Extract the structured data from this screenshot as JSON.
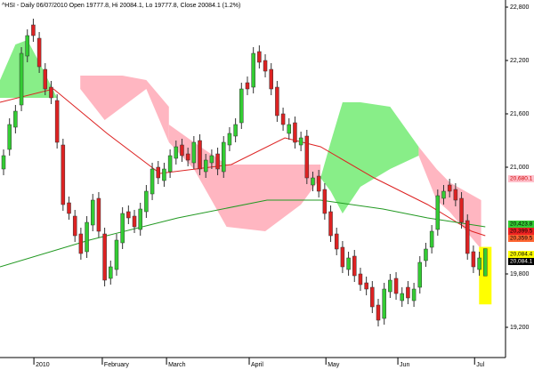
{
  "chart_data": {
    "type": "candlestick",
    "title": "^HSI - Daily 06/07/2010 Open 19777.8, Hi 20084.1, Lo 19777.8, Close 20084.1 (1.2%)",
    "x": [
      0,
      1,
      2,
      3,
      4,
      5,
      6,
      7,
      8,
      9,
      10,
      11,
      12,
      13,
      14,
      15,
      16,
      17,
      18,
      19,
      20,
      21,
      22,
      23,
      24,
      25,
      26,
      27,
      28,
      29,
      30,
      31,
      32,
      33,
      34,
      35,
      36,
      37,
      38,
      39,
      40,
      41,
      42,
      43,
      44,
      45,
      46,
      47,
      48,
      49,
      50,
      51,
      52,
      53,
      54,
      55,
      56,
      57,
      58,
      59,
      60,
      61,
      62,
      63,
      64,
      65,
      66,
      67,
      68,
      69,
      70,
      71,
      72,
      73,
      74,
      75,
      76,
      77,
      78,
      79,
      80,
      81
    ],
    "open": [
      20980,
      21200,
      21450,
      21700,
      22250,
      22600,
      22450,
      22100,
      21900,
      21750,
      21250,
      20600,
      20450,
      20250,
      20050,
      20350,
      20650,
      20250,
      19750,
      19850,
      20150,
      20500,
      20450,
      20300,
      20500,
      20700,
      21000,
      20850,
      20950,
      21100,
      21250,
      21150,
      21050,
      21300,
      20950,
      21050,
      21150,
      20950,
      21250,
      21350,
      21500,
      21950,
      21900,
      22300,
      22200,
      22100,
      21900,
      21600,
      21380,
      21500,
      21250,
      21350,
      20800,
      20900,
      20750,
      20500,
      20250,
      20100,
      19850,
      20000,
      19800,
      19700,
      19650,
      19450,
      19300,
      19600,
      19750,
      19500,
      19650,
      19500,
      19650,
      19950,
      20100,
      20300,
      20650,
      20800,
      20750,
      20650,
      20400,
      20050,
      19850,
      19777.8
    ],
    "high": [
      21200,
      21550,
      21700,
      22350,
      22550,
      22670,
      22520,
      22170,
      21970,
      21820,
      21320,
      20670,
      20520,
      20320,
      20450,
      20700,
      20720,
      20320,
      19950,
      20250,
      20550,
      20570,
      20520,
      20600,
      20800,
      21050,
      21070,
      21050,
      21200,
      21300,
      21320,
      21220,
      21350,
      21370,
      21150,
      21200,
      21220,
      21350,
      21450,
      21550,
      21950,
      22020,
      22350,
      22370,
      22270,
      22170,
      21970,
      21670,
      21550,
      21570,
      21400,
      21420,
      20950,
      20970,
      20820,
      20570,
      20320,
      20170,
      20050,
      20070,
      19870,
      19770,
      19720,
      19520,
      19700,
      19800,
      19820,
      19650,
      19720,
      19700,
      20000,
      20150,
      20350,
      20750,
      20800,
      20870,
      20820,
      20720,
      20470,
      20120,
      20050,
      20084.1
    ],
    "low": [
      20910,
      21130,
      21380,
      21630,
      22180,
      22410,
      22060,
      21810,
      21710,
      21210,
      20510,
      20410,
      20160,
      19960,
      19980,
      20280,
      20210,
      19660,
      19680,
      19780,
      20080,
      20360,
      20260,
      20230,
      20430,
      20630,
      20810,
      20780,
      20880,
      21030,
      21060,
      21010,
      20980,
      20910,
      20880,
      20980,
      20910,
      20880,
      21180,
      21280,
      21430,
      21810,
      21830,
      22110,
      22010,
      21810,
      21510,
      21410,
      21310,
      21210,
      21180,
      20810,
      20730,
      20660,
      20410,
      20160,
      20010,
      19810,
      19780,
      19710,
      19610,
      19560,
      19360,
      19210,
      19230,
      19530,
      19510,
      19430,
      19460,
      19430,
      19580,
      19880,
      20030,
      20230,
      20580,
      20660,
      20560,
      20310,
      19960,
      19810,
      19780,
      19777.8
    ],
    "close": [
      21130,
      21480,
      21630,
      22280,
      22480,
      22480,
      22130,
      21880,
      21780,
      21280,
      20580,
      20480,
      20230,
      20030,
      20380,
      20630,
      20280,
      19730,
      19880,
      20180,
      20480,
      20430,
      20330,
      20530,
      20730,
      20980,
      20880,
      20980,
      21130,
      21230,
      21130,
      21080,
      21280,
      20980,
      21080,
      21130,
      20980,
      21280,
      21380,
      21480,
      21880,
      21880,
      22280,
      22180,
      22080,
      21880,
      21580,
      21480,
      21480,
      21280,
      21330,
      20880,
      20880,
      20730,
      20480,
      20230,
      20080,
      19880,
      19980,
      19780,
      19680,
      19630,
      19430,
      19280,
      19630,
      19730,
      19580,
      19580,
      19530,
      19630,
      19930,
      20080,
      20280,
      20680,
      20730,
      20730,
      20630,
      20380,
      20030,
      19880,
      19980,
      20084.1
    ],
    "up_color": "#33cc33",
    "down_color": "#dd2222",
    "xlim": [
      -0.6,
      84.4
    ],
    "ylim": [
      18880,
      22880
    ],
    "xticks": [
      {
        "value": 5.1,
        "label": "2010"
      },
      {
        "value": 16.6,
        "label": "February"
      },
      {
        "value": 27.4,
        "label": "March"
      },
      {
        "value": 41.3,
        "label": "April"
      },
      {
        "value": 54.2,
        "label": "May"
      },
      {
        "value": 66.3,
        "label": "Jun"
      },
      {
        "value": 79.2,
        "label": "Jul"
      }
    ],
    "yticks": [
      {
        "value": 19200,
        "label": "19,200"
      },
      {
        "value": 19800,
        "label": "19,800"
      },
      {
        "value": 21000,
        "label": "21,000"
      },
      {
        "value": 21600,
        "label": "21,600"
      },
      {
        "value": 22200,
        "label": "22,200"
      },
      {
        "value": 22800,
        "label": "22,800"
      }
    ],
    "clouds": [
      {
        "color": "#88ee88",
        "x": [
          -0.6,
          2,
          4,
          6,
          9
        ],
        "upper": [
          21980,
          22380,
          22430,
          22180,
          21780
        ],
        "lower": [
          21780,
          21780,
          21780,
          21780,
          21780
        ]
      },
      {
        "color": "#ffb6c1",
        "x": [
          12.9,
          17,
          20,
          24,
          27.8
        ],
        "upper": [
          22030,
          22030,
          22030,
          21980,
          21680
        ],
        "lower": [
          21880,
          21530,
          21680,
          21880,
          21280
        ]
      },
      {
        "color": "#ffb6c1",
        "x": [
          27.8,
          32,
          37.5,
          44,
          50,
          53.3
        ],
        "upper": [
          21480,
          21280,
          21030,
          21030,
          21030,
          21030
        ],
        "lower": [
          21280,
          20980,
          20330,
          20280,
          20580,
          20880
        ]
      },
      {
        "color": "#88ee88",
        "x": [
          53.3,
          55,
          57,
          60,
          65,
          69.8
        ],
        "upper": [
          20880,
          21280,
          21730,
          21730,
          21680,
          21230
        ],
        "lower": [
          20880,
          20730,
          20480,
          20780,
          20980,
          21130
        ]
      },
      {
        "color": "#ffb6c1",
        "x": [
          69.8,
          72.8,
          75,
          80.3
        ],
        "upper": [
          21230,
          20980,
          20830,
          20630
        ],
        "lower": [
          21130,
          20630,
          20500,
          20080
        ]
      }
    ],
    "lines": [
      {
        "color": "#dd2222",
        "x": [
          -0.6,
          8.4,
          17.4,
          26.3,
          38.3,
          47.3,
          53.3,
          62.3,
          71.3,
          78.7,
          81
        ],
        "values": [
          21730,
          21880,
          21380,
          20930,
          21030,
          21330,
          21230,
          20880,
          20580,
          20280,
          20230
        ]
      },
      {
        "color": "#229922",
        "x": [
          -0.6,
          14.4,
          29.3,
          44.3,
          53.3,
          63.8,
          71.3,
          81
        ],
        "values": [
          19880,
          20180,
          20430,
          20630,
          20630,
          20530,
          20430,
          20330
        ]
      }
    ],
    "price_labels": [
      {
        "value": 20680.1,
        "label": "20,680.1",
        "color": "#ffc0cb",
        "text_color": "#cc0000"
      },
      {
        "value": 20423.8,
        "label": "20,423.8",
        "color": "#33cc33",
        "text_color": "#000000"
      },
      {
        "value": 20399.5,
        "label": "20,399.5",
        "color": "#ee2222",
        "text_color": "#000000"
      },
      {
        "value": 20359.5,
        "label": "20,359.5",
        "color": "#ff6633",
        "text_color": "#000000"
      },
      {
        "value": 20084.4,
        "label": "20,084.4",
        "color": "#ffff00",
        "text_color": "#000000"
      },
      {
        "value": 20084.1,
        "label": "20,084.1",
        "color": "#000000",
        "text_color": "#ffffff"
      }
    ]
  }
}
